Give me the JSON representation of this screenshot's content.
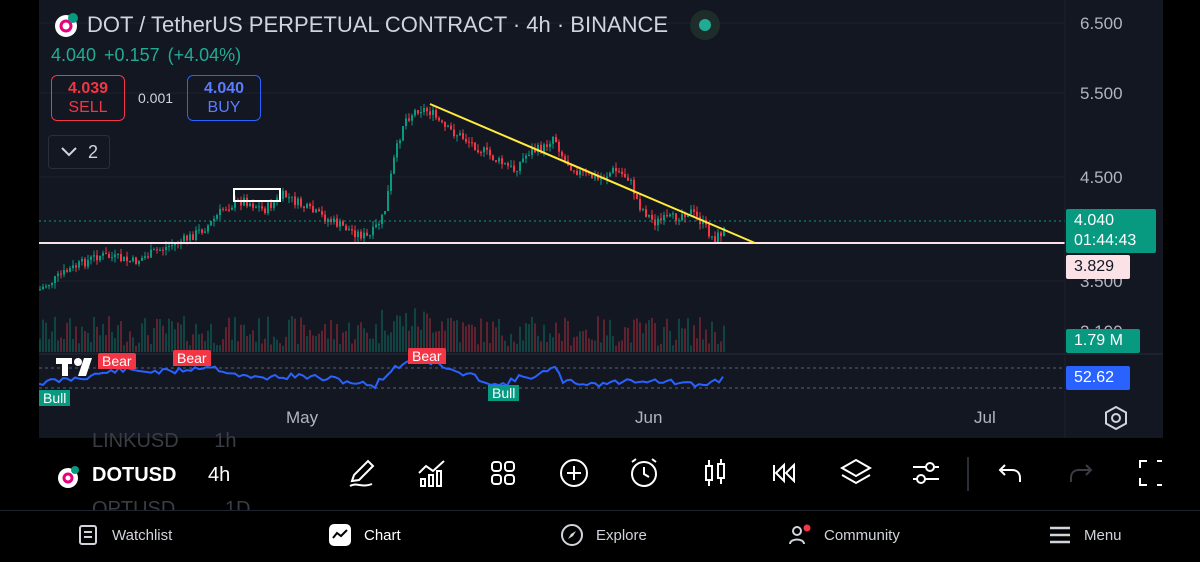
{
  "header": {
    "title": "DOT / TetherUS PERPETUAL CONTRACT · 4h · BINANCE",
    "last": "4.040",
    "change": "+0.157",
    "change_pct": "(+4.04%)"
  },
  "trade": {
    "sell_price": "4.039",
    "sell_label": "SELL",
    "buy_price": "4.040",
    "buy_label": "BUY",
    "spread": "0.001"
  },
  "indicators_toggle": {
    "count": "2"
  },
  "price_axis": {
    "labels": [
      "6.500",
      "5.500",
      "4.500",
      "3.500",
      "2.100"
    ]
  },
  "price_tags": {
    "current_price": "4.040",
    "countdown": "01:44:43",
    "level": "3.829",
    "volume": "1.79 M",
    "rsi": "52.62"
  },
  "time_axis": {
    "labels": [
      "May",
      "Jun",
      "Jul"
    ]
  },
  "signals": {
    "bear": "Bear",
    "bull": "Bull"
  },
  "symbols": {
    "above": "LINKUSD",
    "above_tf": "1h",
    "current": "DOTUSD",
    "current_tf": "4h",
    "below": "OPTUSD",
    "below_tf": "1D"
  },
  "toolbar": {
    "icons": [
      "draw-icon",
      "indicators-icon",
      "layout-icon",
      "add-icon",
      "alert-icon",
      "candle-type-icon",
      "replay-icon",
      "layers-icon",
      "settings-sliders-icon",
      "undo-icon",
      "redo-icon",
      "fullscreen-icon"
    ]
  },
  "nav": {
    "watchlist": "Watchlist",
    "chart": "Chart",
    "explore": "Explore",
    "community": "Community",
    "menu": "Menu"
  },
  "colors": {
    "up": "#089981",
    "down": "#f23645",
    "trendline": "#ffeb3b",
    "level_line": "#fbe2e6",
    "rsi": "#2962ff"
  }
}
